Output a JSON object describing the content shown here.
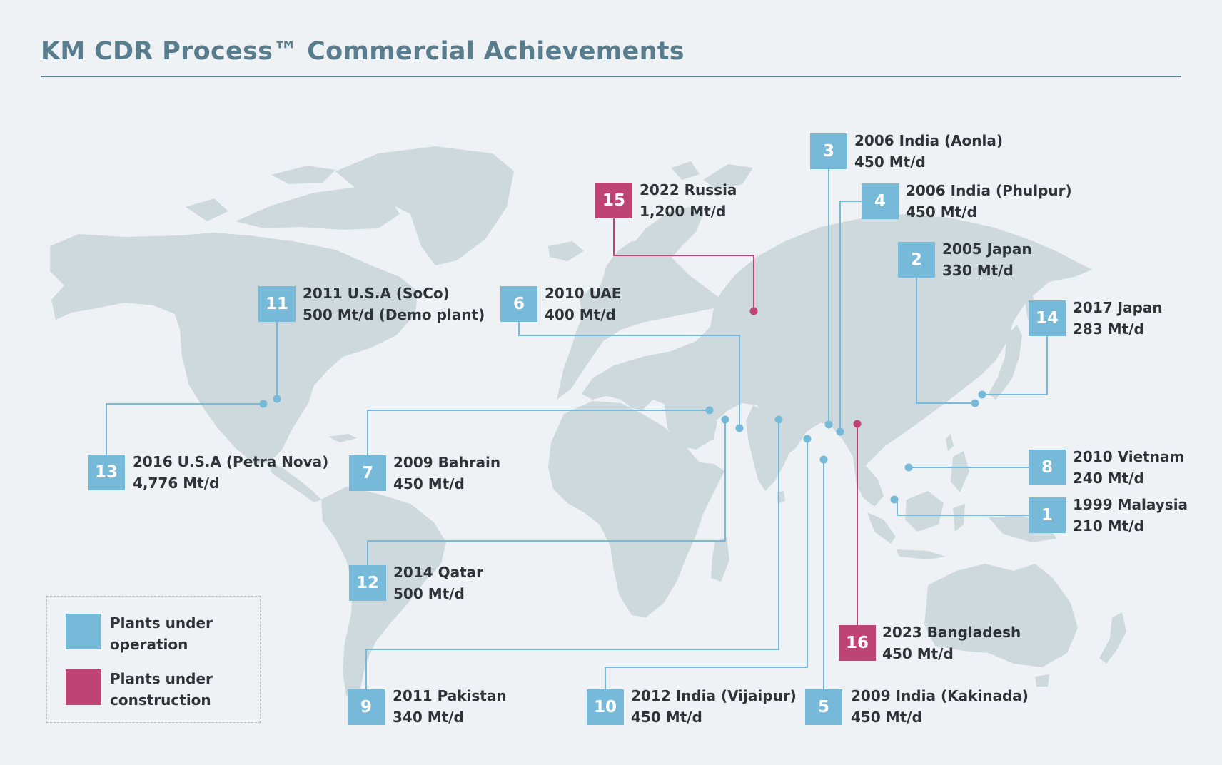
{
  "title": "KM CDR Process™ Commercial Achievements",
  "colors": {
    "operation": "#76b9d8",
    "construction": "#be4476",
    "land": "#ced9de",
    "heading": "#5a7d8e"
  },
  "legend": {
    "operation_label": "Plants under operation",
    "construction_label": "Plants under construction"
  },
  "plants": [
    {
      "num": "1",
      "year_country": "1999 Malaysia",
      "capacity": "210 Mt/d",
      "status": "operation"
    },
    {
      "num": "2",
      "year_country": "2005 Japan",
      "capacity": "330 Mt/d",
      "status": "operation"
    },
    {
      "num": "3",
      "year_country": "2006 India (Aonla)",
      "capacity": "450 Mt/d",
      "status": "operation"
    },
    {
      "num": "4",
      "year_country": "2006 India (Phulpur)",
      "capacity": "450 Mt/d",
      "status": "operation"
    },
    {
      "num": "5",
      "year_country": "2009 India (Kakinada)",
      "capacity": "450 Mt/d",
      "status": "operation"
    },
    {
      "num": "6",
      "year_country": "2010 UAE",
      "capacity": "400 Mt/d",
      "status": "operation"
    },
    {
      "num": "7",
      "year_country": "2009 Bahrain",
      "capacity": "450 Mt/d",
      "status": "operation"
    },
    {
      "num": "8",
      "year_country": "2010 Vietnam",
      "capacity": "240 Mt/d",
      "status": "operation"
    },
    {
      "num": "9",
      "year_country": "2011 Pakistan",
      "capacity": "340 Mt/d",
      "status": "operation"
    },
    {
      "num": "10",
      "year_country": "2012 India (Vijaipur)",
      "capacity": "450 Mt/d",
      "status": "operation"
    },
    {
      "num": "11",
      "year_country": "2011 U.S.A (SoCo)",
      "capacity": "500 Mt/d (Demo plant)",
      "status": "operation"
    },
    {
      "num": "12",
      "year_country": "2014 Qatar",
      "capacity": "500 Mt/d",
      "status": "operation"
    },
    {
      "num": "13",
      "year_country": "2016 U.S.A (Petra Nova)",
      "capacity": "4,776 Mt/d",
      "status": "operation"
    },
    {
      "num": "14",
      "year_country": "2017 Japan",
      "capacity": "283 Mt/d",
      "status": "operation"
    },
    {
      "num": "15",
      "year_country": "2022 Russia",
      "capacity": "1,200 Mt/d",
      "status": "construction"
    },
    {
      "num": "16",
      "year_country": "2023 Bangladesh",
      "capacity": "450 Mt/d",
      "status": "construction"
    }
  ]
}
